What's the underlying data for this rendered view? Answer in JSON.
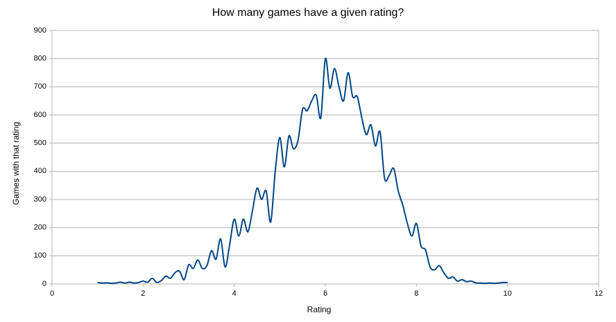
{
  "chart_data": {
    "type": "line",
    "title": "How many games have a given rating?",
    "x_label": "Rating",
    "y_label": "Games with that rating",
    "x": [
      1.0,
      1.1,
      1.2,
      1.3,
      1.4,
      1.5,
      1.6,
      1.7,
      1.8,
      1.9,
      2.0,
      2.1,
      2.2,
      2.3,
      2.4,
      2.5,
      2.6,
      2.7,
      2.8,
      2.9,
      3.0,
      3.1,
      3.2,
      3.3,
      3.4,
      3.5,
      3.6,
      3.7,
      3.8,
      3.9,
      4.0,
      4.1,
      4.2,
      4.3,
      4.4,
      4.5,
      4.6,
      4.7,
      4.8,
      4.9,
      5.0,
      5.1,
      5.2,
      5.3,
      5.4,
      5.5,
      5.6,
      5.7,
      5.8,
      5.9,
      6.0,
      6.1,
      6.2,
      6.3,
      6.4,
      6.5,
      6.6,
      6.7,
      6.8,
      6.9,
      7.0,
      7.1,
      7.2,
      7.3,
      7.4,
      7.5,
      7.6,
      7.7,
      7.8,
      7.9,
      8.0,
      8.1,
      8.2,
      8.3,
      8.4,
      8.5,
      8.6,
      8.7,
      8.8,
      8.9,
      9.0,
      9.1,
      9.2,
      9.3,
      9.4,
      9.5,
      9.6,
      9.7,
      9.8,
      9.9,
      10.0
    ],
    "series": [
      {
        "name": "Games",
        "color": "#004586",
        "values": [
          5,
          3,
          4,
          2,
          3,
          6,
          3,
          6,
          3,
          5,
          10,
          6,
          20,
          5,
          12,
          28,
          20,
          40,
          45,
          15,
          68,
          55,
          85,
          55,
          65,
          118,
          88,
          160,
          60,
          140,
          230,
          170,
          230,
          185,
          260,
          340,
          300,
          330,
          220,
          400,
          520,
          415,
          525,
          480,
          510,
          620,
          615,
          650,
          670,
          590,
          800,
          695,
          765,
          700,
          650,
          750,
          665,
          665,
          590,
          530,
          565,
          490,
          540,
          375,
          385,
          410,
          330,
          280,
          215,
          170,
          215,
          135,
          120,
          60,
          50,
          65,
          40,
          20,
          25,
          10,
          15,
          8,
          10,
          4,
          3,
          2,
          3,
          2,
          3,
          5,
          5
        ]
      }
    ],
    "xlim": [
      0,
      12
    ],
    "xticks": [
      0,
      2,
      4,
      6,
      8,
      10,
      12
    ],
    "ylim": [
      0,
      900
    ],
    "yticks": [
      0,
      100,
      200,
      300,
      400,
      500,
      600,
      700,
      800,
      900
    ],
    "grid": true
  }
}
